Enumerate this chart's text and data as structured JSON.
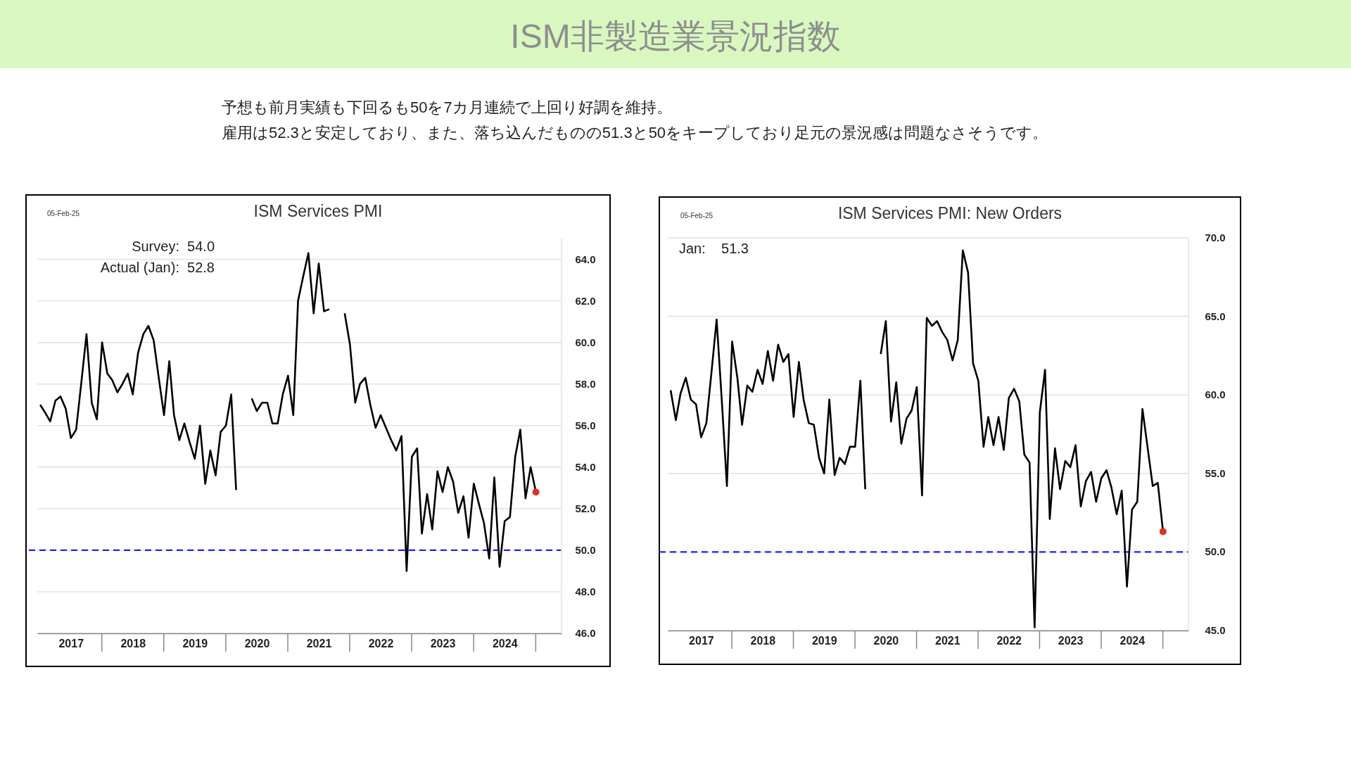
{
  "chart_data": [
    {
      "type": "other",
      "title": "ISM非製造業景況指数",
      "annotations": [
        "予想も前月実績も下回るも50を7カ月連続で上回り好調を維持。",
        "雇用は52.3と安定しており、また、落ち込んだものの51.3と50をキープしており足元の景況感は問題なさそうです。"
      ]
    },
    {
      "type": "line",
      "title": "ISM Services PMI",
      "x": [
        "2017-01",
        "2017-02",
        "2017-03",
        "2017-04",
        "2017-05",
        "2017-06",
        "2017-07",
        "2017-08",
        "2017-09",
        "2017-10",
        "2017-11",
        "2017-12",
        "2018-01",
        "2018-02",
        "2018-03",
        "2018-04",
        "2018-05",
        "2018-06",
        "2018-07",
        "2018-08",
        "2018-09",
        "2018-10",
        "2018-11",
        "2018-12",
        "2019-01",
        "2019-02",
        "2019-03",
        "2019-04",
        "2019-05",
        "2019-06",
        "2019-07",
        "2019-08",
        "2019-09",
        "2019-10",
        "2019-11",
        "2019-12",
        "2020-01",
        "2020-02",
        "2020-03",
        "2020-04",
        "2020-05",
        "2020-06",
        "2020-07",
        "2020-08",
        "2020-09",
        "2020-10",
        "2020-11",
        "2020-12",
        "2021-01",
        "2021-02",
        "2021-03",
        "2021-04",
        "2021-05",
        "2021-06",
        "2021-07",
        "2021-08",
        "2021-09",
        "2021-10",
        "2021-11",
        "2021-12",
        "2022-01",
        "2022-02",
        "2022-03",
        "2022-04",
        "2022-05",
        "2022-06",
        "2022-07",
        "2022-08",
        "2022-09",
        "2022-10",
        "2022-11",
        "2022-12",
        "2023-01",
        "2023-02",
        "2023-03",
        "2023-04",
        "2023-05",
        "2023-06",
        "2023-07",
        "2023-08",
        "2023-09",
        "2023-10",
        "2023-11",
        "2023-12",
        "2024-01",
        "2024-02",
        "2024-03",
        "2024-04",
        "2024-05",
        "2024-06",
        "2024-07",
        "2024-08",
        "2024-09",
        "2024-10",
        "2024-11",
        "2024-12",
        "2025-01"
      ],
      "series": [
        {
          "color": "#000000",
          "values": [
            57.0,
            56.6,
            56.2,
            57.2,
            57.4,
            56.8,
            55.4,
            55.8,
            58.1,
            60.4,
            57.1,
            56.3,
            60.0,
            58.5,
            58.2,
            57.6,
            58.0,
            58.5,
            57.5,
            59.5,
            60.4,
            60.8,
            60.1,
            58.3,
            56.5,
            59.1,
            56.5,
            55.3,
            56.1,
            55.2,
            54.4,
            56.0,
            53.2,
            54.8,
            53.6,
            55.7,
            56.0,
            57.5,
            52.9,
            null,
            null,
            57.3,
            56.7,
            57.1,
            57.1,
            56.1,
            56.1,
            57.5,
            58.4,
            56.5,
            62.0,
            63.2,
            64.3,
            61.4,
            63.8,
            61.5,
            61.6,
            null,
            null,
            61.4,
            59.9,
            57.1,
            58.0,
            58.3,
            57.0,
            55.9,
            56.5,
            55.9,
            55.3,
            54.8,
            55.5,
            49.0,
            54.5,
            54.9,
            50.8,
            52.7,
            51.0,
            53.8,
            52.8,
            54.0,
            53.3,
            51.8,
            52.6,
            50.6,
            53.2,
            52.2,
            51.3,
            49.6,
            53.5,
            49.2,
            51.4,
            51.6,
            54.5,
            55.8,
            52.5,
            54.0,
            52.8
          ]
        },
        {
          "type": "scatter",
          "color": "#e0302a",
          "marker": "circle",
          "x": [
            "2025-01"
          ],
          "values": [
            52.8
          ]
        }
      ],
      "xlim": [
        "2016-12-15",
        "2025-06-01"
      ],
      "xticks": [
        {
          "value": "2017-07-01",
          "label": "2017"
        },
        {
          "value": "2018-07-01",
          "label": "2018"
        },
        {
          "value": "2019-07-01",
          "label": "2019"
        },
        {
          "value": "2020-07-01",
          "label": "2020"
        },
        {
          "value": "2021-07-01",
          "label": "2021"
        },
        {
          "value": "2022-07-01",
          "label": "2022"
        },
        {
          "value": "2023-07-01",
          "label": "2023"
        },
        {
          "value": "2024-07-01",
          "label": "2024"
        }
      ],
      "ylim": [
        46,
        65
      ],
      "yticks": [
        {
          "value": 46,
          "label": "46.0"
        },
        {
          "value": 48,
          "label": "48.0"
        },
        {
          "value": 50,
          "label": "50.0"
        },
        {
          "value": 52,
          "label": "52.0"
        },
        {
          "value": 54,
          "label": "54.0"
        },
        {
          "value": 56,
          "label": "56.0"
        },
        {
          "value": 58,
          "label": "58.0"
        },
        {
          "value": 60,
          "label": "60.0"
        },
        {
          "value": 62,
          "label": "62.0"
        },
        {
          "value": 64,
          "label": "64.0"
        }
      ],
      "grid": "y",
      "ref_lines": [
        {
          "axis": "y",
          "value": 50,
          "color": "#1f1fff",
          "line_style": "dashed"
        }
      ],
      "annotations": [
        "05-Feb-25",
        "Survey:  54.0",
        "Actual (Jan):  52.8"
      ]
    },
    {
      "type": "line",
      "title": "ISM Services PMI: New Orders",
      "x": [
        "2017-01",
        "2017-02",
        "2017-03",
        "2017-04",
        "2017-05",
        "2017-06",
        "2017-07",
        "2017-08",
        "2017-09",
        "2017-10",
        "2017-11",
        "2017-12",
        "2018-01",
        "2018-02",
        "2018-03",
        "2018-04",
        "2018-05",
        "2018-06",
        "2018-07",
        "2018-08",
        "2018-09",
        "2018-10",
        "2018-11",
        "2018-12",
        "2019-01",
        "2019-02",
        "2019-03",
        "2019-04",
        "2019-05",
        "2019-06",
        "2019-07",
        "2019-08",
        "2019-09",
        "2019-10",
        "2019-11",
        "2019-12",
        "2020-01",
        "2020-02",
        "2020-03",
        "2020-04",
        "2020-05",
        "2020-06",
        "2020-07",
        "2020-08",
        "2020-09",
        "2020-10",
        "2020-11",
        "2020-12",
        "2021-01",
        "2021-02",
        "2021-03",
        "2021-04",
        "2021-05",
        "2021-06",
        "2021-07",
        "2021-08",
        "2021-09",
        "2021-10",
        "2021-11",
        "2021-12",
        "2022-01",
        "2022-02",
        "2022-03",
        "2022-04",
        "2022-05",
        "2022-06",
        "2022-07",
        "2022-08",
        "2022-09",
        "2022-10",
        "2022-11",
        "2022-12",
        "2023-01",
        "2023-02",
        "2023-03",
        "2023-04",
        "2023-05",
        "2023-06",
        "2023-07",
        "2023-08",
        "2023-09",
        "2023-10",
        "2023-11",
        "2023-12",
        "2024-01",
        "2024-02",
        "2024-03",
        "2024-04",
        "2024-05",
        "2024-06",
        "2024-07",
        "2024-08",
        "2024-09",
        "2024-10",
        "2024-11",
        "2024-12",
        "2025-01"
      ],
      "series": [
        {
          "color": "#000000",
          "values": [
            60.3,
            58.4,
            60.1,
            61.1,
            59.7,
            59.4,
            57.3,
            58.2,
            61.5,
            64.8,
            59.6,
            54.2,
            63.4,
            61.1,
            58.1,
            60.6,
            60.2,
            61.6,
            60.7,
            62.8,
            60.9,
            63.2,
            62.1,
            62.6,
            58.6,
            62.1,
            59.7,
            58.2,
            58.1,
            56.0,
            55.0,
            59.7,
            54.9,
            56.0,
            55.6,
            56.7,
            56.7,
            60.9,
            54.0,
            null,
            null,
            62.6,
            64.7,
            58.3,
            60.8,
            56.9,
            58.5,
            59.0,
            60.5,
            53.6,
            64.9,
            64.4,
            64.7,
            64.0,
            63.5,
            62.2,
            63.5,
            69.2,
            67.8,
            62.0,
            60.9,
            56.7,
            58.6,
            56.8,
            58.6,
            56.5,
            59.8,
            60.4,
            59.6,
            56.2,
            55.7,
            45.2,
            58.9,
            61.6,
            52.1,
            56.6,
            54.0,
            55.8,
            55.4,
            56.8,
            52.9,
            54.5,
            55.1,
            53.2,
            54.7,
            55.2,
            54.1,
            52.4,
            53.9,
            47.8,
            52.7,
            53.2,
            59.1,
            56.7,
            54.2,
            54.4,
            51.3
          ]
        },
        {
          "type": "scatter",
          "color": "#e0302a",
          "marker": "circle",
          "x": [
            "2025-01"
          ],
          "values": [
            51.3
          ]
        }
      ],
      "xlim": [
        "2016-12-15",
        "2025-06-01"
      ],
      "xticks": [
        {
          "value": "2017-07-01",
          "label": "2017"
        },
        {
          "value": "2018-07-01",
          "label": "2018"
        },
        {
          "value": "2019-07-01",
          "label": "2019"
        },
        {
          "value": "2020-07-01",
          "label": "2020"
        },
        {
          "value": "2021-07-01",
          "label": "2021"
        },
        {
          "value": "2022-07-01",
          "label": "2022"
        },
        {
          "value": "2023-07-01",
          "label": "2023"
        },
        {
          "value": "2024-07-01",
          "label": "2024"
        }
      ],
      "ylim": [
        45,
        70
      ],
      "yticks": [
        {
          "value": 45,
          "label": "45.0"
        },
        {
          "value": 50,
          "label": "50.0"
        },
        {
          "value": 55,
          "label": "55.0"
        },
        {
          "value": 60,
          "label": "60.0"
        },
        {
          "value": 65,
          "label": "65.0"
        },
        {
          "value": 70,
          "label": "70.0"
        }
      ],
      "grid": "y",
      "ref_lines": [
        {
          "axis": "y",
          "value": 50,
          "color": "#1f1fff",
          "line_style": "dashed"
        }
      ],
      "annotations": [
        "05-Feb-25",
        "Jan:    51.3"
      ]
    }
  ]
}
